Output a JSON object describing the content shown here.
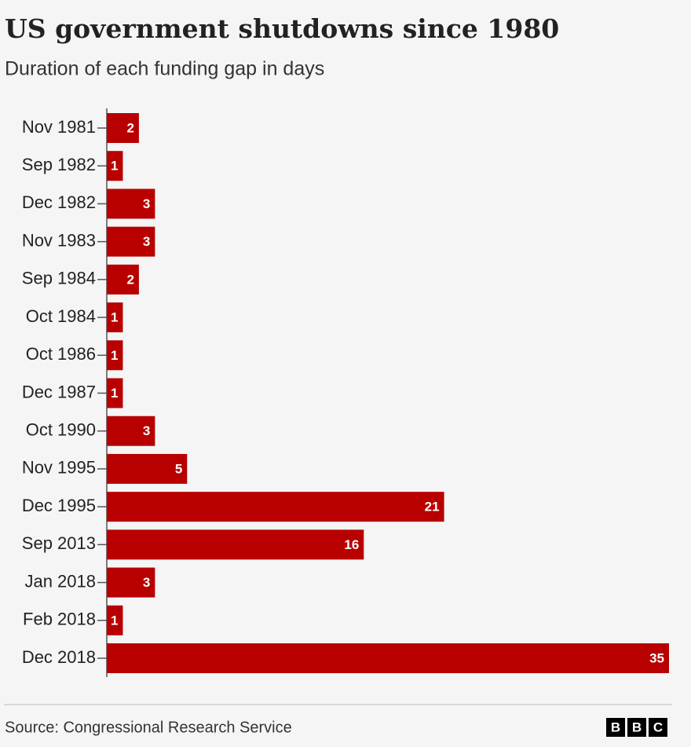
{
  "chart_data": {
    "type": "bar",
    "orientation": "horizontal",
    "title": "US government shutdowns since 1980",
    "subtitle": "Duration of each funding gap in days",
    "categories": [
      "Nov 1981",
      "Sep 1982",
      "Dec 1982",
      "Nov 1983",
      "Sep 1984",
      "Oct 1984",
      "Oct 1986",
      "Dec 1987",
      "Oct 1990",
      "Nov 1995",
      "Dec 1995",
      "Sep 2013",
      "Jan 2018",
      "Feb 2018",
      "Dec 2018"
    ],
    "values": [
      2,
      1,
      3,
      3,
      2,
      1,
      1,
      1,
      3,
      5,
      21,
      16,
      3,
      1,
      35
    ],
    "color": "#b80000",
    "source": "Source: Congressional Research Service",
    "logo": [
      "B",
      "B",
      "C"
    ]
  }
}
